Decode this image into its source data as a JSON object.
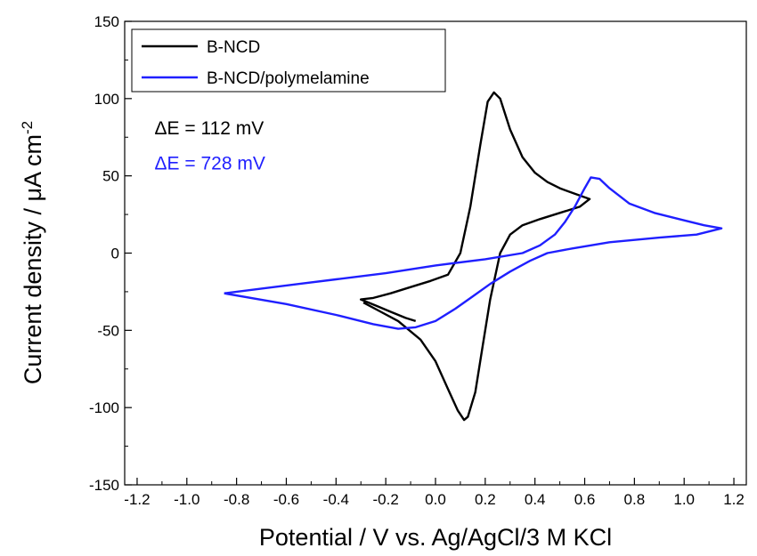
{
  "chart_data": {
    "type": "line",
    "xlabel": "Potential / V vs. Ag/AgCl/3 M KCl",
    "ylabel_main": "Current density / μA cm",
    "ylabel_sup": "-2",
    "xlim": [
      -1.25,
      1.25
    ],
    "ylim": [
      -150,
      150
    ],
    "x_ticks": [
      -1.2,
      -1.0,
      -0.8,
      -0.6,
      -0.4,
      -0.2,
      0.0,
      0.2,
      0.4,
      0.6,
      0.8,
      1.0,
      1.2
    ],
    "x_tick_labels": [
      "-1.2",
      "-1.0",
      "-0.8",
      "-0.6",
      "-0.4",
      "-0.2",
      "0.0",
      "0.2",
      "0.4",
      "0.6",
      "0.8",
      "1.0",
      "1.2"
    ],
    "y_ticks": [
      -150,
      -100,
      -50,
      0,
      50,
      100,
      150
    ],
    "y_tick_labels": [
      "-150",
      "-100",
      "-50",
      "0",
      "50",
      "100",
      "150"
    ],
    "grid": false,
    "legend_position": "top-left",
    "series": [
      {
        "name": "B-NCD",
        "color": "#000000",
        "points": [
          [
            -0.08,
            -44
          ],
          [
            -0.12,
            -42
          ],
          [
            -0.18,
            -38
          ],
          [
            -0.24,
            -34
          ],
          [
            -0.3,
            -30
          ],
          [
            -0.25,
            -29
          ],
          [
            -0.18,
            -26
          ],
          [
            -0.1,
            -22
          ],
          [
            -0.02,
            -18
          ],
          [
            0.05,
            -14
          ],
          [
            0.1,
            0
          ],
          [
            0.14,
            30
          ],
          [
            0.18,
            70
          ],
          [
            0.21,
            98
          ],
          [
            0.235,
            104
          ],
          [
            0.26,
            100
          ],
          [
            0.3,
            80
          ],
          [
            0.35,
            62
          ],
          [
            0.4,
            52
          ],
          [
            0.45,
            46
          ],
          [
            0.5,
            42
          ],
          [
            0.55,
            39
          ],
          [
            0.62,
            35
          ],
          [
            0.58,
            30
          ],
          [
            0.5,
            26
          ],
          [
            0.42,
            22
          ],
          [
            0.35,
            18
          ],
          [
            0.3,
            12
          ],
          [
            0.26,
            0
          ],
          [
            0.22,
            -30
          ],
          [
            0.19,
            -60
          ],
          [
            0.16,
            -90
          ],
          [
            0.13,
            -106
          ],
          [
            0.115,
            -108
          ],
          [
            0.09,
            -102
          ],
          [
            0.05,
            -88
          ],
          [
            0.0,
            -70
          ],
          [
            -0.06,
            -56
          ],
          [
            -0.15,
            -44
          ],
          [
            -0.22,
            -38
          ],
          [
            -0.29,
            -32
          ]
        ]
      },
      {
        "name": "B-NCD/polymelamine",
        "color": "#1f1fff",
        "points": [
          [
            -0.85,
            -26
          ],
          [
            -0.7,
            -23
          ],
          [
            -0.55,
            -20
          ],
          [
            -0.4,
            -17
          ],
          [
            -0.2,
            -13
          ],
          [
            0.0,
            -8
          ],
          [
            0.2,
            -4
          ],
          [
            0.35,
            0
          ],
          [
            0.42,
            5
          ],
          [
            0.48,
            12
          ],
          [
            0.52,
            20
          ],
          [
            0.56,
            30
          ],
          [
            0.6,
            42
          ],
          [
            0.625,
            49
          ],
          [
            0.66,
            48
          ],
          [
            0.7,
            42
          ],
          [
            0.78,
            32
          ],
          [
            0.88,
            26
          ],
          [
            0.98,
            22
          ],
          [
            1.08,
            18
          ],
          [
            1.15,
            16
          ],
          [
            1.05,
            12
          ],
          [
            0.9,
            10
          ],
          [
            0.7,
            7
          ],
          [
            0.55,
            3
          ],
          [
            0.45,
            0
          ],
          [
            0.38,
            -5
          ],
          [
            0.3,
            -12
          ],
          [
            0.22,
            -20
          ],
          [
            0.15,
            -28
          ],
          [
            0.08,
            -36
          ],
          [
            0.0,
            -44
          ],
          [
            -0.08,
            -48
          ],
          [
            -0.15,
            -49
          ],
          [
            -0.25,
            -46
          ],
          [
            -0.4,
            -40
          ],
          [
            -0.6,
            -33
          ],
          [
            -0.85,
            -26
          ]
        ]
      }
    ],
    "annotations": [
      {
        "label": "ΔE = 112 mV",
        "color": "#000000",
        "x": -1.13,
        "y": 77
      },
      {
        "label": "ΔE = 728 mV",
        "color": "#1f1fff",
        "x": -1.13,
        "y": 54
      }
    ]
  }
}
